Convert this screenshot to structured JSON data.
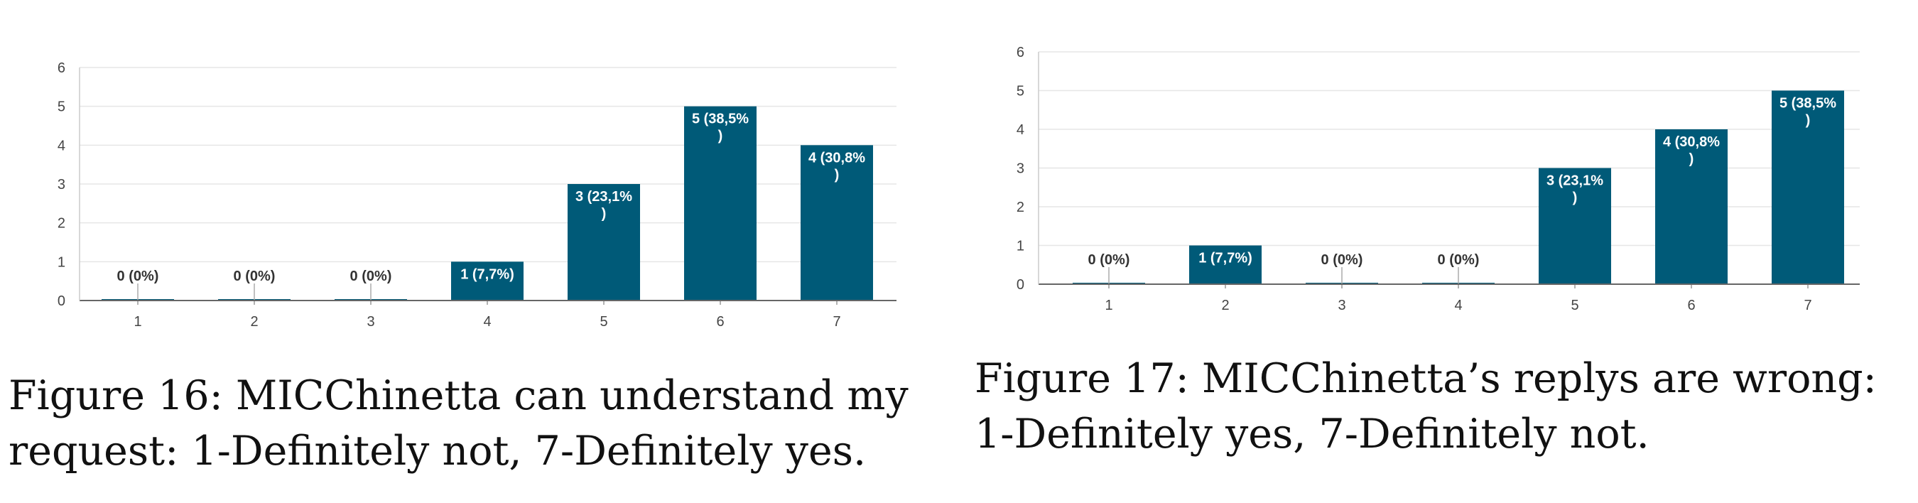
{
  "chart_data": [
    {
      "type": "bar",
      "categories": [
        "1",
        "2",
        "3",
        "4",
        "5",
        "6",
        "7"
      ],
      "values": [
        0,
        0,
        0,
        1,
        3,
        5,
        4
      ],
      "data_labels": [
        [
          "0 (0%)"
        ],
        [
          "0 (0%)"
        ],
        [
          "0 (0%)"
        ],
        [
          "1 (7,7%)"
        ],
        [
          "3 (23,1%",
          ")"
        ],
        [
          "5 (38,5%",
          ")"
        ],
        [
          "4 (30,8%",
          ")"
        ]
      ],
      "ylim": [
        0,
        6
      ],
      "yticks": [
        "0",
        "1",
        "2",
        "3",
        "4",
        "5",
        "6"
      ],
      "grid": true,
      "bar_color": "#005a78",
      "caption_lines": [
        "Figure 16:  MICChinetta can understand my",
        "request: 1-Definitely not, 7-Definitely yes."
      ]
    },
    {
      "type": "bar",
      "categories": [
        "1",
        "2",
        "3",
        "4",
        "5",
        "6",
        "7"
      ],
      "values": [
        0,
        1,
        0,
        0,
        3,
        4,
        5
      ],
      "data_labels": [
        [
          "0 (0%)"
        ],
        [
          "1 (7,7%)"
        ],
        [
          "0 (0%)"
        ],
        [
          "0 (0%)"
        ],
        [
          "3 (23,1%",
          ")"
        ],
        [
          "4 (30,8%",
          ")"
        ],
        [
          "5 (38,5%",
          ")"
        ]
      ],
      "ylim": [
        0,
        6
      ],
      "yticks": [
        "0",
        "1",
        "2",
        "3",
        "4",
        "5",
        "6"
      ],
      "grid": true,
      "bar_color": "#005a78",
      "caption_lines": [
        "Figure 17:  MICChinetta’s replys are wrong:",
        "1-Definitely yes, 7-Definitely not."
      ]
    }
  ]
}
